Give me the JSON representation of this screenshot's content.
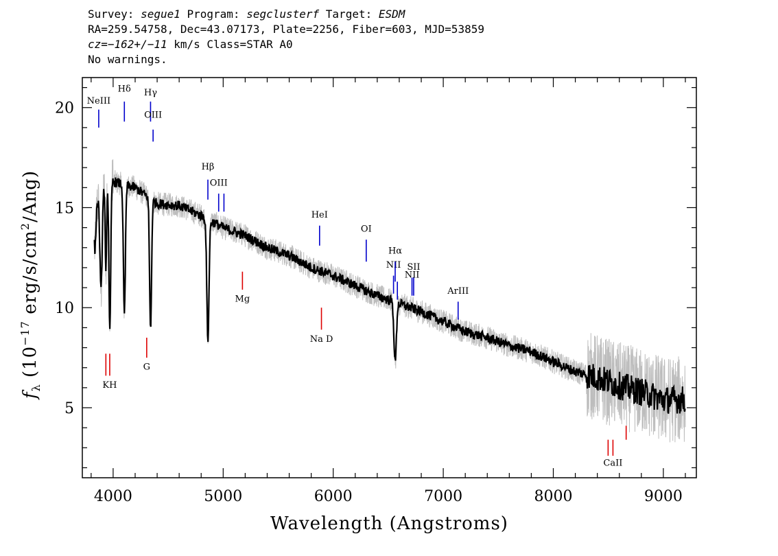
{
  "header": {
    "line1": {
      "survey_label": "Survey: ",
      "survey": "segue1",
      "program_label": " Program: ",
      "program": "segclusterf",
      "target_label": " Target: ",
      "target": "ESDM"
    },
    "line2": "RA=259.54758, Dec=43.07173, Plate=2256, Fiber=603, MJD=53859",
    "line3": {
      "cz": "cz=−162+/−11",
      "rest": " km/s Class=STAR A0"
    },
    "line4": "No warnings."
  },
  "colors": {
    "flux": "#000000",
    "error_band": "#bdbdbd",
    "emission": "#0000cc",
    "absorption": "#dd0000"
  },
  "chart_data": {
    "type": "line",
    "xlabel": "Wavelength (Angstroms)",
    "ylabel_symbol": "f",
    "ylabel_sub": "λ",
    "ylabel_rest": " (10",
    "ylabel_exp": "−17",
    "ylabel_unit": " erg/s/cm",
    "ylabel_unit_exp": "2",
    "ylabel_end": "/Ang)",
    "xlim": [
      3720,
      9300
    ],
    "ylim": [
      1.5,
      21.5
    ],
    "x_ticks": [
      4000,
      5000,
      6000,
      7000,
      8000,
      9000
    ],
    "y_ticks": [
      5,
      10,
      15,
      20
    ],
    "continuum": [
      [
        3830,
        14.8
      ],
      [
        3900,
        16.0
      ],
      [
        4000,
        16.3
      ],
      [
        4200,
        16.0
      ],
      [
        4400,
        15.2
      ],
      [
        4600,
        15.1
      ],
      [
        4800,
        14.6
      ],
      [
        5000,
        14.0
      ],
      [
        5200,
        13.6
      ],
      [
        5400,
        13.0
      ],
      [
        5600,
        12.6
      ],
      [
        5800,
        12.0
      ],
      [
        6000,
        11.6
      ],
      [
        6200,
        11.1
      ],
      [
        6400,
        10.6
      ],
      [
        6600,
        10.2
      ],
      [
        6800,
        9.8
      ],
      [
        7000,
        9.3
      ],
      [
        7200,
        8.8
      ],
      [
        7400,
        8.5
      ],
      [
        7600,
        8.1
      ],
      [
        7800,
        7.8
      ],
      [
        8000,
        7.3
      ],
      [
        8200,
        6.8
      ],
      [
        8400,
        6.5
      ],
      [
        8600,
        6.1
      ],
      [
        8800,
        5.8
      ],
      [
        9000,
        5.4
      ],
      [
        9200,
        5.4
      ]
    ],
    "absorption_features": [
      {
        "center": 3835,
        "depth": 2.0,
        "width": 8
      },
      {
        "center": 3890,
        "depth": 5.0,
        "width": 10
      },
      {
        "center": 3934,
        "depth": 4.5,
        "width": 6
      },
      {
        "center": 3970,
        "depth": 7.5,
        "width": 8
      },
      {
        "center": 4102,
        "depth": 6.5,
        "width": 9
      },
      {
        "center": 4340,
        "depth": 6.5,
        "width": 9
      },
      {
        "center": 4861,
        "depth": 6.0,
        "width": 10
      },
      {
        "center": 6563,
        "depth": 3.0,
        "width": 11
      }
    ],
    "emission_lines": [
      {
        "label": "NeIII",
        "x": 3869,
        "y_top": 19.9,
        "y_bottom": 19.0,
        "label_y": 20.2
      },
      {
        "label": "Hδ",
        "x": 4102,
        "y_top": 20.3,
        "y_bottom": 19.3,
        "label_y": 20.8
      },
      {
        "label": "Hγ",
        "x": 4340,
        "y_top": 20.3,
        "y_bottom": 19.3,
        "label_y": 20.6
      },
      {
        "label": "OIII",
        "x": 4363,
        "y_top": 18.9,
        "y_bottom": 18.3,
        "label_y": 19.5
      },
      {
        "label": "Hβ",
        "x": 4861,
        "y_top": 16.4,
        "y_bottom": 15.4,
        "label_y": 16.9
      },
      {
        "label": "OIII",
        "x": 4959,
        "y_top": 15.7,
        "y_bottom": 14.8,
        "label_y": 16.1
      },
      {
        "label": "",
        "x": 5007,
        "y_top": 15.7,
        "y_bottom": 14.8,
        "label_y": 0
      },
      {
        "label": "HeI",
        "x": 5876,
        "y_top": 14.1,
        "y_bottom": 13.1,
        "label_y": 14.5
      },
      {
        "label": "OI",
        "x": 6300,
        "y_top": 13.4,
        "y_bottom": 12.3,
        "label_y": 13.8
      },
      {
        "label": "NII",
        "x": 6548,
        "y_top": 11.6,
        "y_bottom": 10.7,
        "label_y": 12.0
      },
      {
        "label": "Hα",
        "x": 6563,
        "y_top": 12.3,
        "y_bottom": 11.3,
        "label_y": 12.7
      },
      {
        "label": "",
        "x": 6583,
        "y_top": 11.3,
        "y_bottom": 10.4,
        "label_y": 0
      },
      {
        "label": "NII",
        "x": 6716,
        "y_top": 11.5,
        "y_bottom": 10.6,
        "label_y": 11.5
      },
      {
        "label": "SII",
        "x": 6731,
        "y_top": 11.5,
        "y_bottom": 10.6,
        "label_y": 11.9
      },
      {
        "label": "ArIII",
        "x": 7135,
        "y_top": 10.3,
        "y_bottom": 9.4,
        "label_y": 10.7
      }
    ],
    "absorption_lines": [
      {
        "label": "",
        "x": 3934,
        "y_top": 7.7,
        "y_bottom": 6.6,
        "label_y": 0
      },
      {
        "label": "KH",
        "x": 3969,
        "y_top": 7.7,
        "y_bottom": 6.6,
        "label_y": 6.0
      },
      {
        "label": "G",
        "x": 4305,
        "y_top": 8.5,
        "y_bottom": 7.5,
        "label_y": 6.9
      },
      {
        "label": "Mg",
        "x": 5175,
        "y_top": 11.8,
        "y_bottom": 10.9,
        "label_y": 10.3
      },
      {
        "label": "Na D",
        "x": 5893,
        "y_top": 10.0,
        "y_bottom": 8.9,
        "label_y": 8.3
      },
      {
        "label": "",
        "x": 8498,
        "y_top": 3.4,
        "y_bottom": 2.6,
        "label_y": 0
      },
      {
        "label": "CaII",
        "x": 8542,
        "y_top": 3.4,
        "y_bottom": 2.6,
        "label_y": 2.1
      },
      {
        "label": "",
        "x": 8662,
        "y_top": 4.1,
        "y_bottom": 3.4,
        "label_y": 0
      }
    ]
  }
}
